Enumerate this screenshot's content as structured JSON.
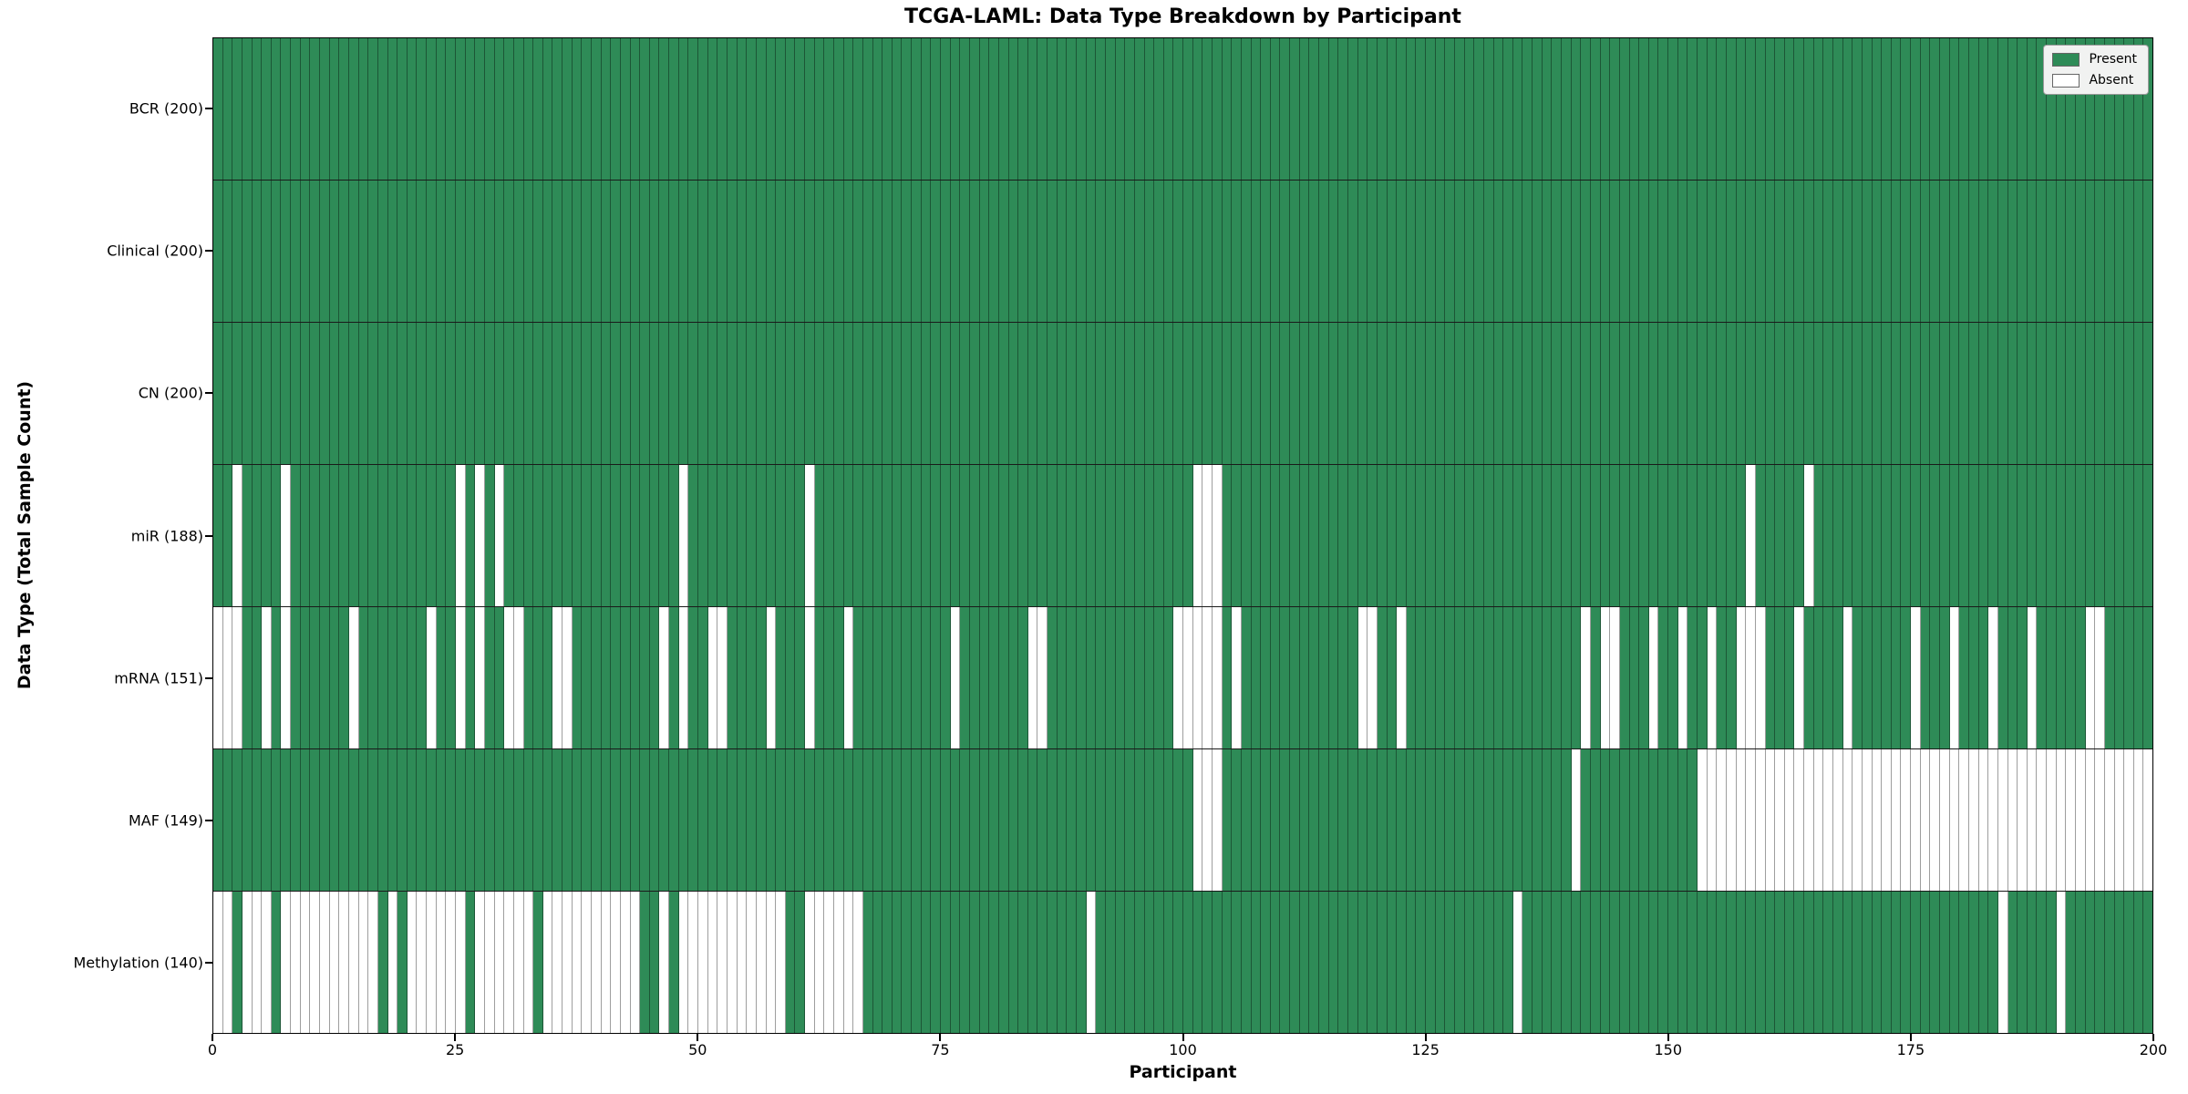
{
  "chart_data": {
    "type": "heatmap",
    "title": "TCGA-LAML: Data Type Breakdown by Participant",
    "xlabel": "Participant",
    "ylabel": "Data Type (Total Sample Count)",
    "x_range": [
      0,
      200
    ],
    "n_participants": 200,
    "x_ticks": [
      0,
      25,
      50,
      75,
      100,
      125,
      150,
      175,
      200
    ],
    "grid": "cell-borders",
    "legend_position": "upper-right",
    "legend": [
      {
        "label": "Present",
        "color": "#2e8b57"
      },
      {
        "label": "Absent",
        "color": "#ffffff"
      }
    ],
    "colors": {
      "present": "#2e8b57",
      "absent": "#ffffff",
      "cell_border": "rgba(0,0,0,0.38)",
      "row_separator": "#1a1a1a"
    },
    "rows": [
      {
        "name": "BCR",
        "total": 200,
        "label": "BCR (200)",
        "absent_ranges": []
      },
      {
        "name": "Clinical",
        "total": 200,
        "label": "Clinical (200)",
        "absent_ranges": []
      },
      {
        "name": "CN",
        "total": 200,
        "label": "CN (200)",
        "absent_ranges": []
      },
      {
        "name": "miR",
        "total": 188,
        "label": "miR (188)",
        "absent_ranges": [
          [
            2,
            2
          ],
          [
            7,
            7
          ],
          [
            25,
            25
          ],
          [
            27,
            27
          ],
          [
            29,
            29
          ],
          [
            48,
            48
          ],
          [
            61,
            61
          ],
          [
            101,
            103
          ],
          [
            158,
            158
          ],
          [
            164,
            164
          ]
        ]
      },
      {
        "name": "mRNA",
        "total": 151,
        "label": "mRNA (151)",
        "absent_ranges": [
          [
            0,
            2
          ],
          [
            5,
            5
          ],
          [
            7,
            7
          ],
          [
            14,
            14
          ],
          [
            22,
            22
          ],
          [
            25,
            25
          ],
          [
            27,
            27
          ],
          [
            30,
            31
          ],
          [
            35,
            36
          ],
          [
            46,
            46
          ],
          [
            48,
            48
          ],
          [
            51,
            52
          ],
          [
            57,
            57
          ],
          [
            61,
            61
          ],
          [
            65,
            65
          ],
          [
            76,
            76
          ],
          [
            84,
            85
          ],
          [
            99,
            103
          ],
          [
            105,
            105
          ],
          [
            118,
            119
          ],
          [
            122,
            122
          ],
          [
            141,
            141
          ],
          [
            143,
            144
          ],
          [
            148,
            148
          ],
          [
            151,
            151
          ],
          [
            154,
            154
          ],
          [
            157,
            159
          ],
          [
            163,
            163
          ],
          [
            168,
            168
          ],
          [
            175,
            175
          ],
          [
            179,
            179
          ],
          [
            183,
            183
          ],
          [
            187,
            187
          ],
          [
            193,
            194
          ]
        ]
      },
      {
        "name": "MAF",
        "total": 149,
        "label": "MAF (149)",
        "absent_ranges": [
          [
            101,
            103
          ],
          [
            140,
            140
          ],
          [
            153,
            199
          ]
        ]
      },
      {
        "name": "Methylation",
        "total": 140,
        "label": "Methylation (140)",
        "absent_ranges": [
          [
            0,
            1
          ],
          [
            3,
            5
          ],
          [
            7,
            16
          ],
          [
            18,
            18
          ],
          [
            20,
            25
          ],
          [
            27,
            32
          ],
          [
            34,
            43
          ],
          [
            46,
            46
          ],
          [
            48,
            58
          ],
          [
            61,
            66
          ],
          [
            90,
            90
          ],
          [
            134,
            134
          ],
          [
            184,
            184
          ],
          [
            190,
            190
          ]
        ]
      }
    ]
  }
}
